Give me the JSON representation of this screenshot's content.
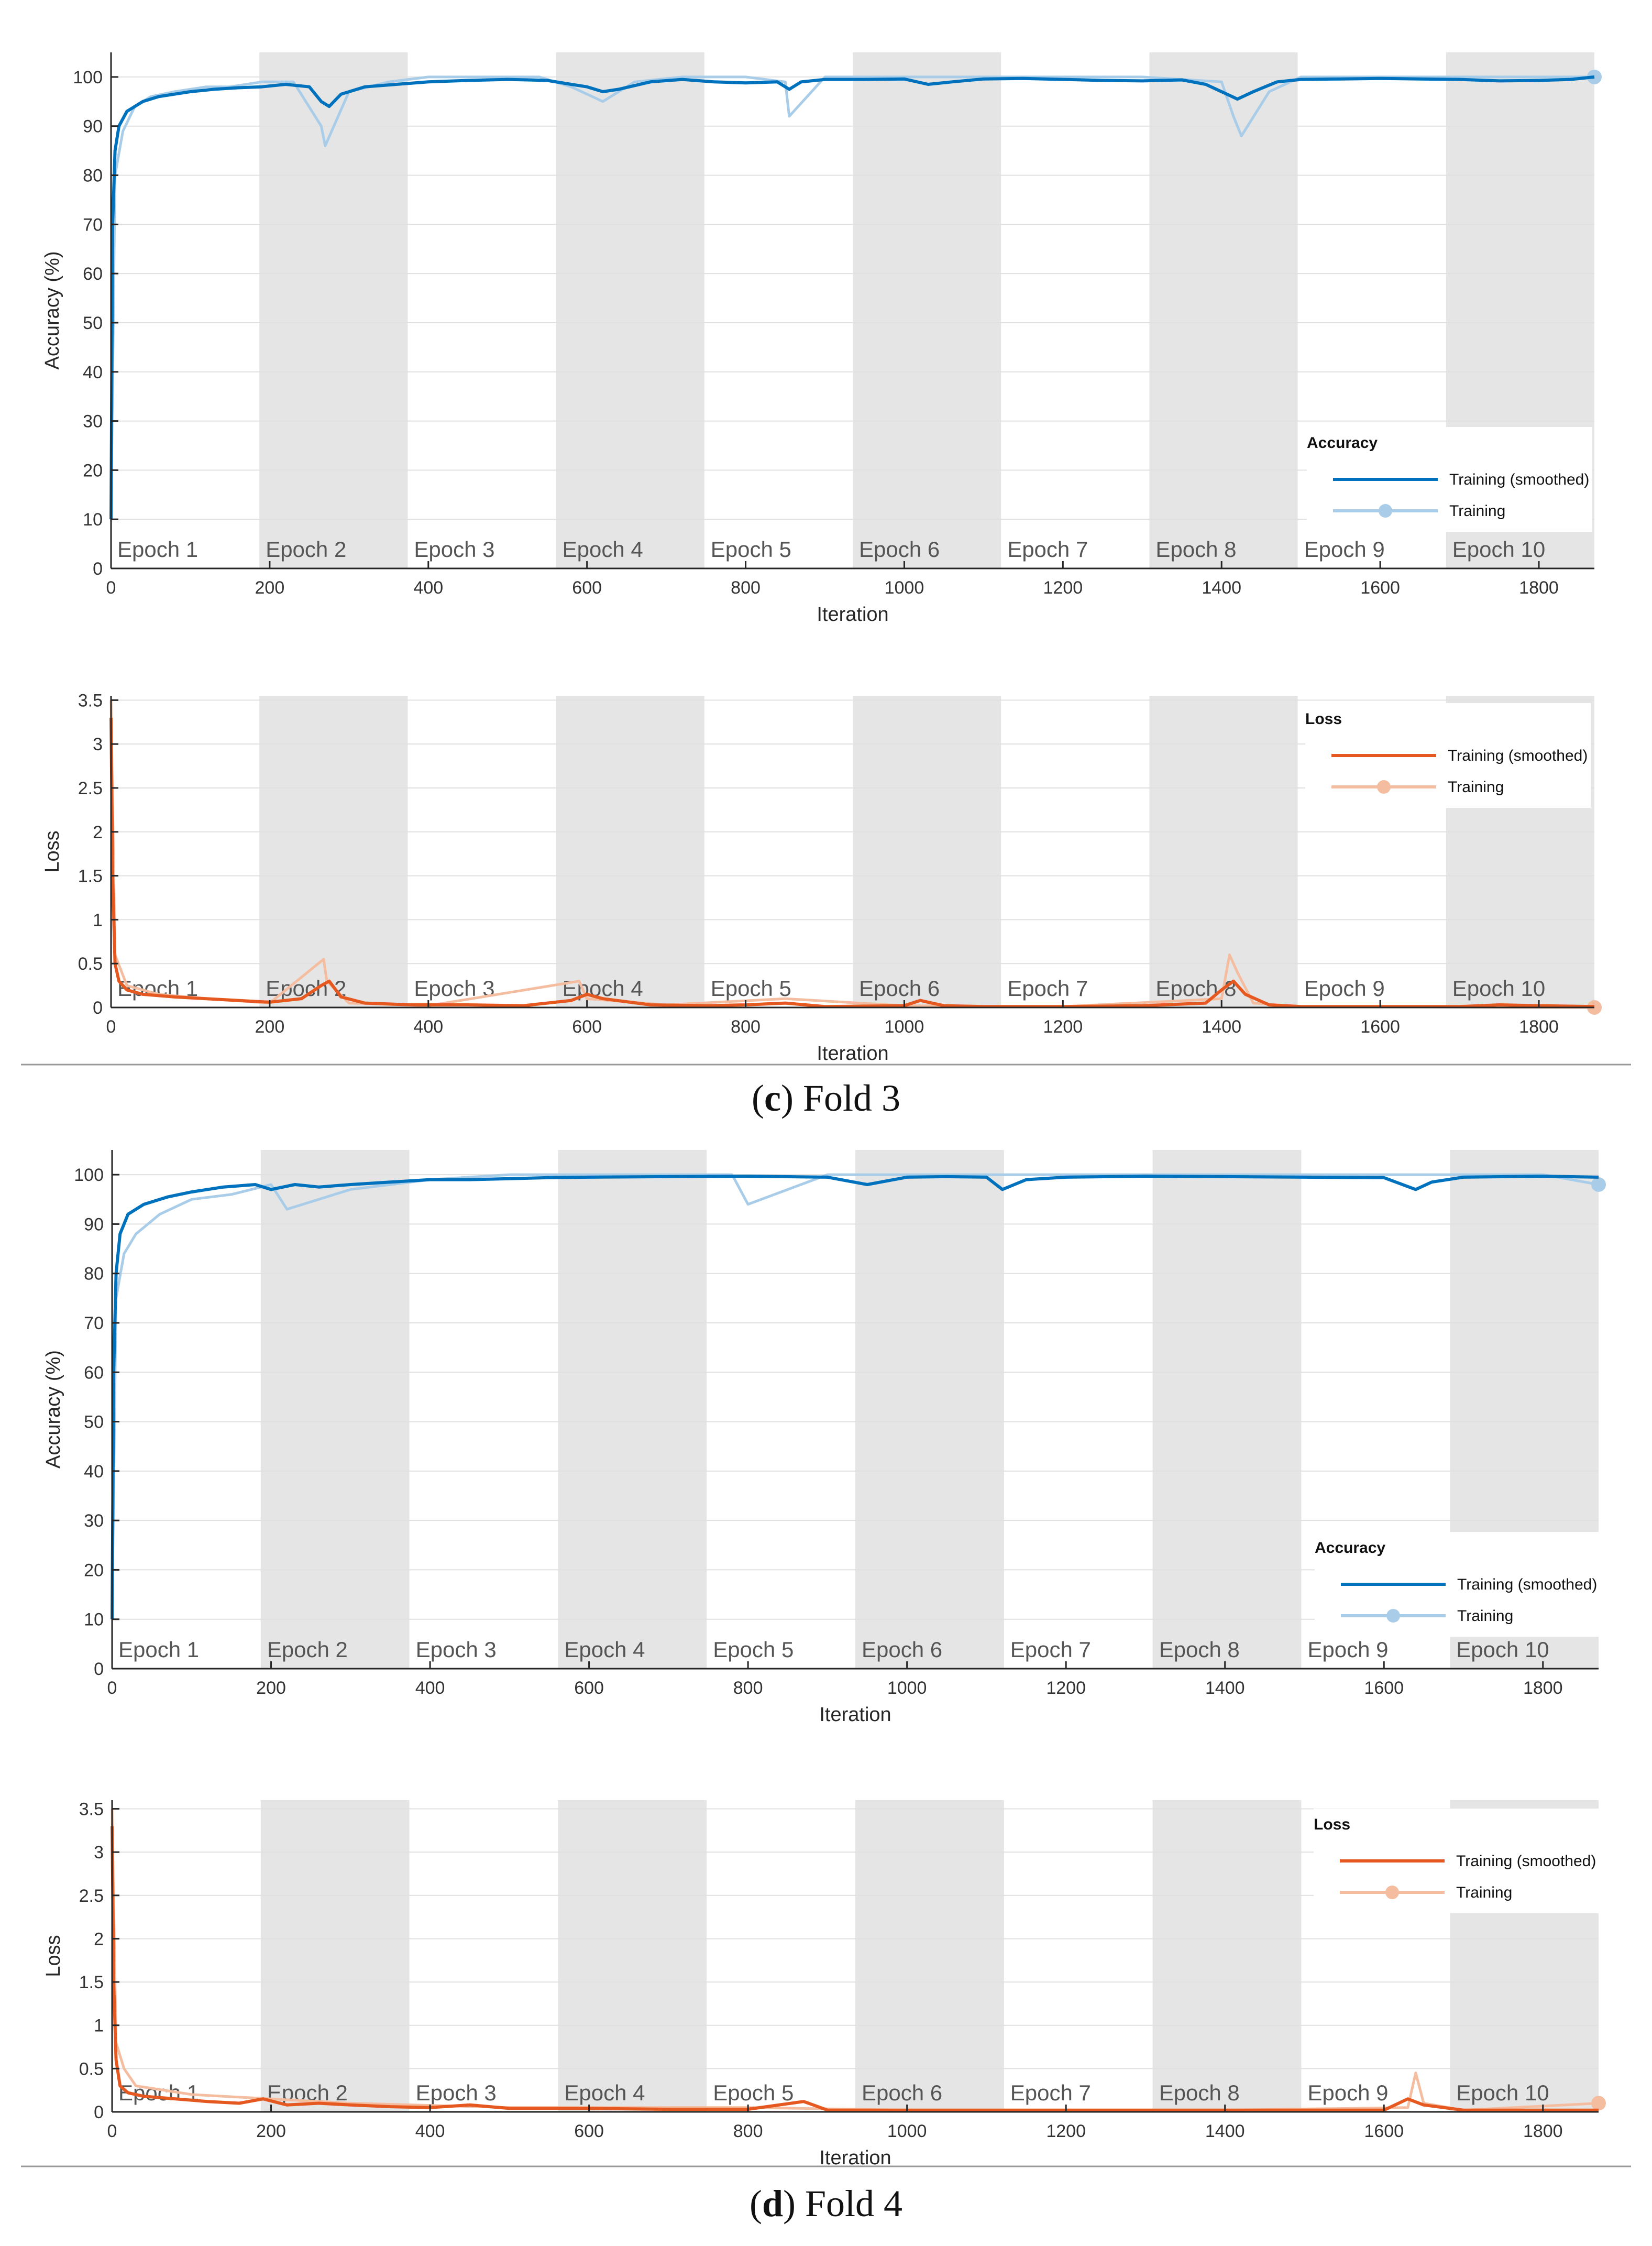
{
  "figure": {
    "captions": [
      {
        "letter": "c",
        "text": "Fold 3"
      },
      {
        "letter": "d",
        "text": "Fold 4"
      }
    ]
  },
  "colors": {
    "accuracy_smoothed": "#0072bd",
    "accuracy_raw": "#a9cde8",
    "loss_smoothed": "#e5581f",
    "loss_raw": "#f5bda0",
    "epoch_shade": "#e5e5e5",
    "grid": "#e0e0e0",
    "axis_text": "#333333"
  },
  "chart_data": [
    {
      "type": "line",
      "panel": "c",
      "metric": "accuracy",
      "xlabel": "Iteration",
      "ylabel": "Accuracy (%)",
      "xlim": [
        0,
        1870
      ],
      "ylim": [
        0,
        105
      ],
      "xticks": [
        0,
        200,
        400,
        600,
        800,
        1000,
        1200,
        1400,
        1600,
        1800
      ],
      "yticks": [
        0,
        10,
        20,
        30,
        40,
        50,
        60,
        70,
        80,
        90,
        100
      ],
      "epochs": [
        "Epoch 1",
        "Epoch 2",
        "Epoch 3",
        "Epoch 4",
        "Epoch 5",
        "Epoch 6",
        "Epoch 7",
        "Epoch 8",
        "Epoch 9",
        "Epoch 10"
      ],
      "epoch_length": 187,
      "grid": true,
      "legend": {
        "title": "Accuracy",
        "placement": "lower-right",
        "entries": [
          "Training (smoothed)",
          "Training"
        ]
      },
      "series": [
        {
          "name": "Training (smoothed)",
          "x": [
            0,
            2,
            5,
            10,
            20,
            40,
            60,
            80,
            100,
            130,
            160,
            190,
            220,
            250,
            265,
            275,
            290,
            320,
            360,
            400,
            450,
            500,
            550,
            580,
            600,
            620,
            640,
            680,
            720,
            760,
            800,
            840,
            855,
            870,
            900,
            950,
            1000,
            1030,
            1060,
            1100,
            1150,
            1200,
            1250,
            1300,
            1350,
            1380,
            1400,
            1420,
            1440,
            1470,
            1500,
            1550,
            1600,
            1650,
            1700,
            1750,
            1800,
            1840,
            1870
          ],
          "y": [
            10,
            70,
            85,
            90,
            93,
            95,
            96,
            96.5,
            97,
            97.5,
            97.8,
            98,
            98.5,
            98,
            95,
            94,
            96.5,
            98,
            98.5,
            99,
            99.3,
            99.5,
            99.3,
            98.5,
            98,
            97,
            97.5,
            99,
            99.5,
            99,
            98.8,
            99,
            97.5,
            99,
            99.5,
            99.5,
            99.6,
            98.5,
            99,
            99.6,
            99.7,
            99.5,
            99.3,
            99.2,
            99.4,
            98.5,
            97,
            95.5,
            97,
            99,
            99.5,
            99.6,
            99.7,
            99.6,
            99.5,
            99.2,
            99.3,
            99.5,
            100
          ]
        },
        {
          "name": "Training",
          "x": [
            0,
            5,
            15,
            30,
            50,
            80,
            120,
            150,
            190,
            230,
            265,
            270,
            300,
            350,
            400,
            470,
            540,
            580,
            620,
            660,
            720,
            800,
            850,
            855,
            900,
            1000,
            1100,
            1200,
            1300,
            1400,
            1415,
            1425,
            1460,
            1500,
            1600,
            1700,
            1800,
            1870
          ],
          "y": [
            10,
            80,
            89,
            94,
            96,
            97,
            98,
            98,
            99,
            99,
            90,
            86,
            97,
            99,
            100,
            100,
            100,
            98,
            95,
            99,
            100,
            100,
            99,
            92,
            100,
            100,
            100,
            100,
            100,
            99,
            92,
            88,
            97,
            100,
            100,
            100,
            100,
            100
          ]
        }
      ]
    },
    {
      "type": "line",
      "panel": "c",
      "metric": "loss",
      "xlabel": "Iteration",
      "ylabel": "Loss",
      "xlim": [
        0,
        1870
      ],
      "ylim": [
        0,
        3.55
      ],
      "xticks": [
        0,
        200,
        400,
        600,
        800,
        1000,
        1200,
        1400,
        1600,
        1800
      ],
      "yticks": [
        0,
        0.5,
        1,
        1.5,
        2,
        2.5,
        3,
        3.5
      ],
      "epochs": [
        "Epoch 1",
        "Epoch 2",
        "Epoch 3",
        "Epoch 4",
        "Epoch 5",
        "Epoch 6",
        "Epoch 7",
        "Epoch 8",
        "Epoch 9",
        "Epoch 10"
      ],
      "epoch_length": 187,
      "grid": true,
      "legend": {
        "title": "Loss",
        "placement": "top-right",
        "entries": [
          "Training (smoothed)",
          "Training"
        ]
      },
      "series": [
        {
          "name": "Training (smoothed)",
          "x": [
            0,
            2,
            5,
            10,
            20,
            40,
            80,
            120,
            160,
            200,
            240,
            265,
            275,
            290,
            320,
            380,
            450,
            520,
            580,
            600,
            620,
            680,
            750,
            800,
            850,
            900,
            1000,
            1020,
            1050,
            1100,
            1200,
            1300,
            1380,
            1400,
            1415,
            1430,
            1460,
            1500,
            1600,
            1700,
            1750,
            1800,
            1870
          ],
          "y": [
            3.3,
            1.5,
            0.5,
            0.3,
            0.2,
            0.15,
            0.12,
            0.1,
            0.08,
            0.06,
            0.1,
            0.25,
            0.3,
            0.12,
            0.05,
            0.03,
            0.03,
            0.02,
            0.08,
            0.15,
            0.1,
            0.03,
            0.02,
            0.03,
            0.05,
            0.01,
            0.02,
            0.08,
            0.02,
            0.01,
            0.01,
            0.02,
            0.05,
            0.2,
            0.3,
            0.15,
            0.03,
            0.01,
            0.01,
            0.01,
            0.03,
            0.02,
            0.01
          ]
        },
        {
          "name": "Training",
          "x": [
            0,
            5,
            20,
            60,
            120,
            200,
            268,
            272,
            300,
            400,
            590,
            600,
            700,
            850,
            1000,
            1200,
            1400,
            1410,
            1420,
            1440,
            1500,
            1870
          ],
          "y": [
            3.5,
            0.6,
            0.25,
            0.15,
            0.1,
            0.05,
            0.55,
            0.3,
            0.05,
            0.02,
            0.3,
            0.1,
            0.03,
            0.1,
            0.02,
            0.01,
            0.1,
            0.6,
            0.4,
            0.05,
            0.01,
            0
          ]
        }
      ]
    },
    {
      "type": "line",
      "panel": "d",
      "metric": "accuracy",
      "xlabel": "Iteration",
      "ylabel": "Accuracy (%)",
      "xlim": [
        0,
        1870
      ],
      "ylim": [
        0,
        105
      ],
      "xticks": [
        0,
        200,
        400,
        600,
        800,
        1000,
        1200,
        1400,
        1600,
        1800
      ],
      "yticks": [
        0,
        10,
        20,
        30,
        40,
        50,
        60,
        70,
        80,
        90,
        100
      ],
      "epochs": [
        "Epoch 1",
        "Epoch 2",
        "Epoch 3",
        "Epoch 4",
        "Epoch 5",
        "Epoch 6",
        "Epoch 7",
        "Epoch 8",
        "Epoch 9",
        "Epoch 10"
      ],
      "epoch_length": 187,
      "grid": true,
      "legend": {
        "title": "Accuracy",
        "placement": "lower-right",
        "entries": [
          "Training (smoothed)",
          "Training"
        ]
      },
      "series": [
        {
          "name": "Training (smoothed)",
          "x": [
            0,
            2,
            5,
            10,
            20,
            40,
            70,
            100,
            140,
            180,
            200,
            230,
            260,
            300,
            350,
            400,
            450,
            500,
            550,
            600,
            700,
            800,
            900,
            950,
            1000,
            1050,
            1100,
            1120,
            1150,
            1200,
            1300,
            1400,
            1500,
            1600,
            1640,
            1660,
            1700,
            1800,
            1870
          ],
          "y": [
            10,
            60,
            80,
            88,
            92,
            94,
            95.5,
            96.5,
            97.5,
            98,
            97,
            98,
            97.5,
            98,
            98.5,
            99,
            99,
            99.2,
            99.4,
            99.5,
            99.6,
            99.7,
            99.5,
            98,
            99.5,
            99.6,
            99.5,
            97,
            99,
            99.5,
            99.7,
            99.6,
            99.5,
            99.4,
            97,
            98.5,
            99.5,
            99.7,
            99.5
          ]
        },
        {
          "name": "Training",
          "x": [
            0,
            5,
            15,
            30,
            60,
            100,
            150,
            200,
            220,
            300,
            400,
            500,
            600,
            780,
            800,
            900,
            1000,
            1100,
            1200,
            1400,
            1600,
            1700,
            1800,
            1870
          ],
          "y": [
            10,
            75,
            84,
            88,
            92,
            95,
            96,
            98,
            93,
            97,
            99,
            100,
            100,
            100,
            94,
            100,
            100,
            100,
            100,
            100,
            100,
            100,
            100,
            98
          ]
        }
      ]
    },
    {
      "type": "line",
      "panel": "d",
      "metric": "loss",
      "xlabel": "Iteration",
      "ylabel": "Loss",
      "xlim": [
        0,
        1870
      ],
      "ylim": [
        0,
        3.6
      ],
      "xticks": [
        0,
        200,
        400,
        600,
        800,
        1000,
        1200,
        1400,
        1600,
        1800
      ],
      "yticks": [
        0,
        0.5,
        1,
        1.5,
        2,
        2.5,
        3,
        3.5
      ],
      "epochs": [
        "Epoch 1",
        "Epoch 2",
        "Epoch 3",
        "Epoch 4",
        "Epoch 5",
        "Epoch 6",
        "Epoch 7",
        "Epoch 8",
        "Epoch 9",
        "Epoch 10"
      ],
      "epoch_length": 187,
      "grid": true,
      "legend": {
        "title": "Loss",
        "placement": "top-right",
        "entries": [
          "Training (smoothed)",
          "Training"
        ]
      },
      "series": [
        {
          "name": "Training (smoothed)",
          "x": [
            0,
            2,
            5,
            10,
            20,
            40,
            80,
            120,
            160,
            190,
            220,
            260,
            300,
            350,
            400,
            450,
            500,
            600,
            700,
            800,
            870,
            900,
            1000,
            1100,
            1200,
            1300,
            1400,
            1500,
            1600,
            1630,
            1650,
            1700,
            1800,
            1870
          ],
          "y": [
            3.3,
            1.5,
            0.6,
            0.3,
            0.22,
            0.18,
            0.15,
            0.12,
            0.1,
            0.15,
            0.08,
            0.1,
            0.08,
            0.06,
            0.05,
            0.08,
            0.04,
            0.04,
            0.03,
            0.03,
            0.12,
            0.02,
            0.02,
            0.02,
            0.02,
            0.02,
            0.02,
            0.02,
            0.02,
            0.15,
            0.08,
            0.02,
            0.02,
            0.02
          ]
        },
        {
          "name": "Training",
          "x": [
            0,
            5,
            15,
            30,
            100,
            200,
            300,
            500,
            800,
            1000,
            1200,
            1400,
            1630,
            1640,
            1650,
            1700,
            1870
          ],
          "y": [
            3.5,
            0.8,
            0.5,
            0.3,
            0.2,
            0.15,
            0.1,
            0.05,
            0.05,
            0.02,
            0.02,
            0.02,
            0.05,
            0.45,
            0.1,
            0.02,
            0.1
          ]
        }
      ]
    }
  ]
}
